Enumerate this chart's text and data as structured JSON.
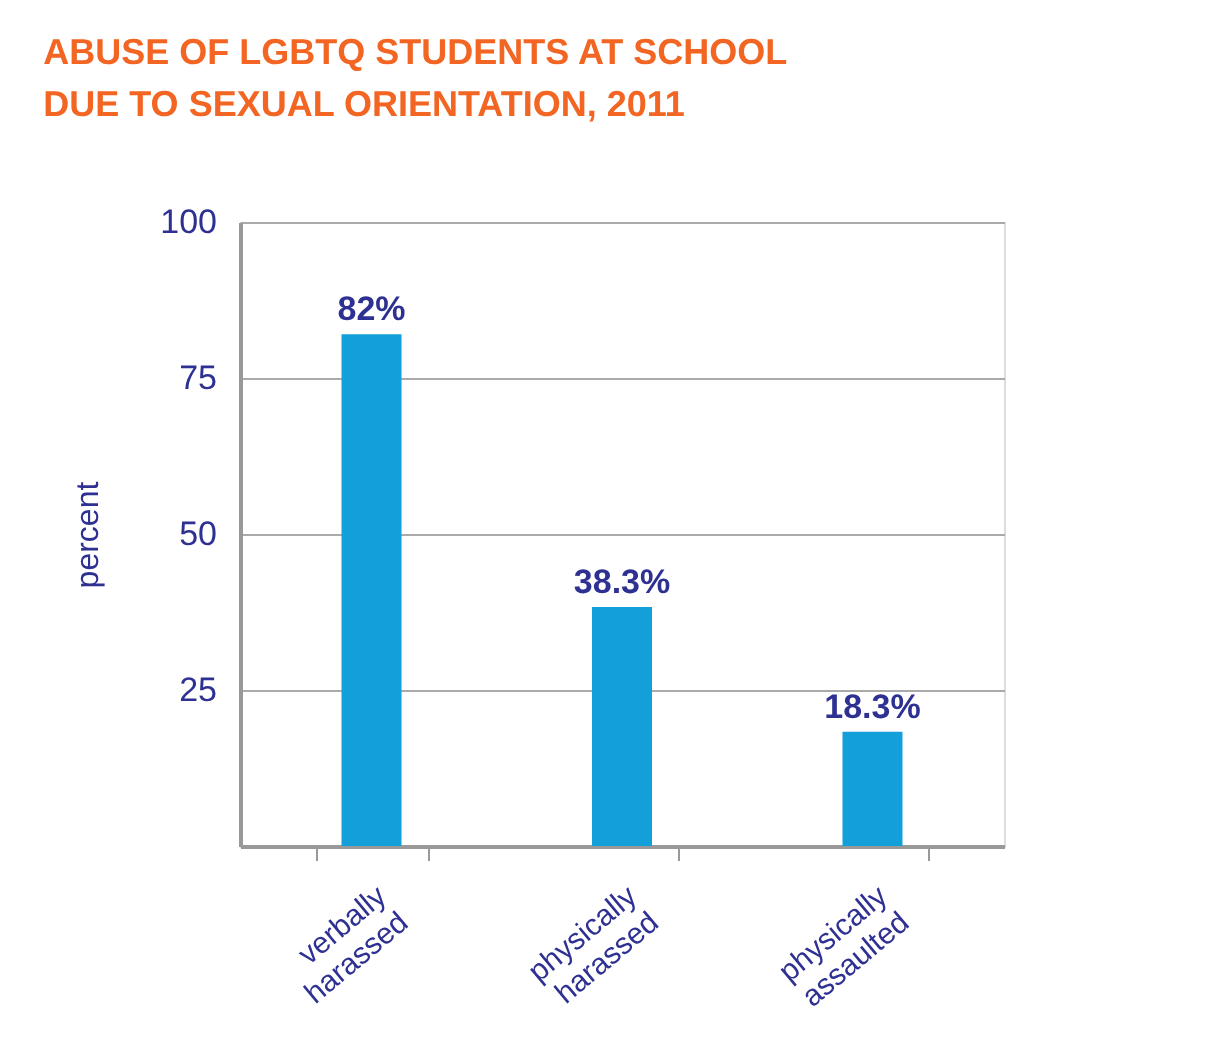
{
  "chart_data": {
    "type": "bar",
    "title": [
      "ABUSE OF LGBTQ STUDENTS AT SCHOOL",
      "DUE TO SEXUAL ORIENTATION, 2011"
    ],
    "ylabel": "percent",
    "categories": [
      "verbally harassed",
      "physically harassed",
      "physically assaulted"
    ],
    "values": [
      82,
      38.3,
      18.3
    ],
    "value_labels": [
      "82%",
      "38.3%",
      "18.3%"
    ],
    "color": "#139fd9",
    "ylim": [
      0,
      100
    ],
    "yticks": [
      25,
      50,
      75,
      100
    ],
    "grid": "y"
  }
}
